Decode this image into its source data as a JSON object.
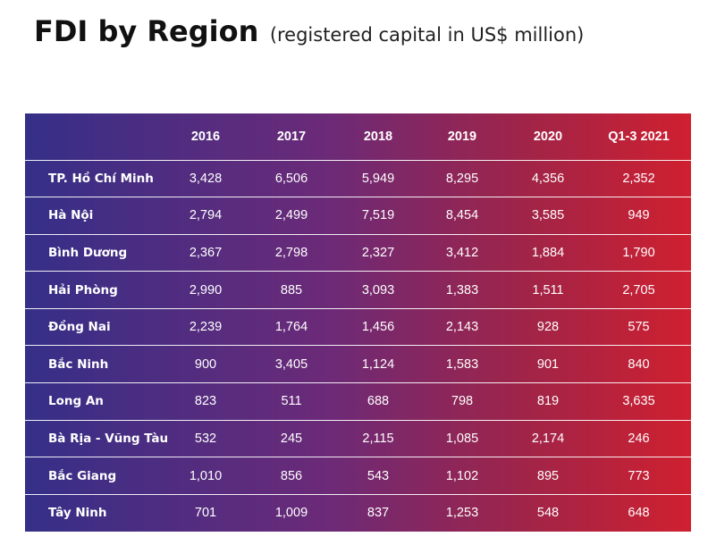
{
  "header": {
    "title": "FDI  by Region",
    "subtitle": "(registered capital in US$ million)"
  },
  "chart_data": {
    "type": "table",
    "title": "FDI  by Region",
    "subtitle": "(registered capital in US$ million)",
    "columns": [
      "",
      "2016",
      "2017",
      "2018",
      "2019",
      "2020",
      "Q1-3 2021"
    ],
    "rows": [
      {
        "region": "TP. Hồ Chí Minh",
        "values": [
          "3,428",
          "6,506",
          "5,949",
          "8,295",
          "4,356",
          "2,352"
        ]
      },
      {
        "region": "Hà Nội",
        "values": [
          "2,794",
          "2,499",
          "7,519",
          "8,454",
          "3,585",
          "949"
        ]
      },
      {
        "region": "Bình Dương",
        "values": [
          "2,367",
          "2,798",
          "2,327",
          "3,412",
          "1,884",
          "1,790"
        ]
      },
      {
        "region": "Hải Phòng",
        "values": [
          "2,990",
          "885",
          "3,093",
          "1,383",
          "1,511",
          "2,705"
        ]
      },
      {
        "region": "Đồng Nai",
        "values": [
          "2,239",
          "1,764",
          "1,456",
          "2,143",
          "928",
          "575"
        ]
      },
      {
        "region": "Bắc Ninh",
        "values": [
          "900",
          "3,405",
          "1,124",
          "1,583",
          "901",
          "840"
        ]
      },
      {
        "region": "Long An",
        "values": [
          "823",
          "511",
          "688",
          "798",
          "819",
          "3,635"
        ]
      },
      {
        "region": "Bà Rịa - Vũng Tàu",
        "values": [
          "532",
          "245",
          "2,115",
          "1,085",
          "2,174",
          "246"
        ]
      },
      {
        "region": "Bắc Giang",
        "values": [
          "1,010",
          "856",
          "543",
          "1,102",
          "895",
          "773"
        ]
      },
      {
        "region": "Tây Ninh",
        "values": [
          "701",
          "1,009",
          "837",
          "1,253",
          "548",
          "648"
        ]
      }
    ]
  },
  "colors": {
    "gradient_start": "#352f88",
    "gradient_mid": "#6b2a78",
    "gradient_end": "#cf2030",
    "text": "#ffffff",
    "title": "#111111"
  }
}
